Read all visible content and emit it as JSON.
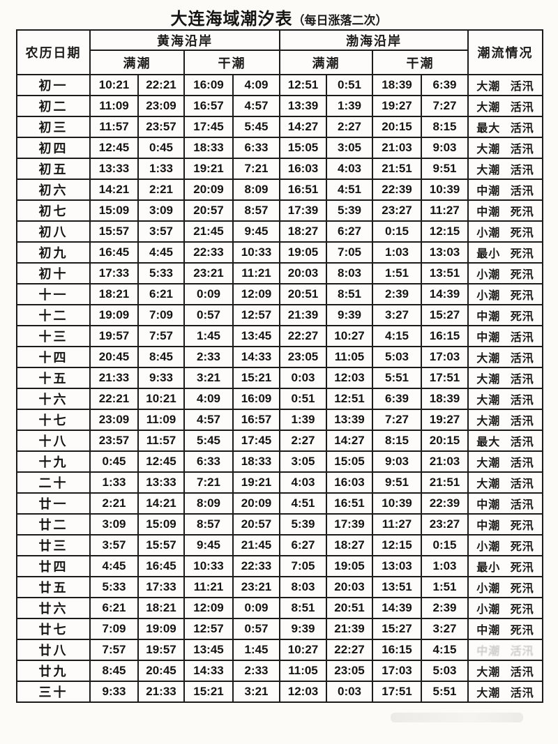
{
  "title": {
    "main": "大连海域潮汐表",
    "note": "（每日涨落二次）"
  },
  "table": {
    "headers": {
      "lunar_date": "农历日期",
      "yellow_sea": "黄海沿岸",
      "bohai_sea": "渤海沿岸",
      "high_tide": "满潮",
      "low_tide": "干潮",
      "tide_current": "潮流情况"
    },
    "rows": [
      {
        "date": "初一",
        "yellow_high": [
          "10:21",
          "22:21"
        ],
        "yellow_low": [
          "16:09",
          "4:09"
        ],
        "bohai_high": [
          "12:51",
          "0:51"
        ],
        "bohai_low": [
          "18:39",
          "6:39"
        ],
        "current": "大潮 活汛"
      },
      {
        "date": "初二",
        "yellow_high": [
          "11:09",
          "23:09"
        ],
        "yellow_low": [
          "16:57",
          "4:57"
        ],
        "bohai_high": [
          "13:39",
          "1:39"
        ],
        "bohai_low": [
          "19:27",
          "7:27"
        ],
        "current": "大潮 活汛"
      },
      {
        "date": "初三",
        "yellow_high": [
          "11:57",
          "23:57"
        ],
        "yellow_low": [
          "17:45",
          "5:45"
        ],
        "bohai_high": [
          "14:27",
          "2:27"
        ],
        "bohai_low": [
          "20:15",
          "8:15"
        ],
        "current": "最大 活汛"
      },
      {
        "date": "初四",
        "yellow_high": [
          "12:45",
          "0:45"
        ],
        "yellow_low": [
          "18:33",
          "6:33"
        ],
        "bohai_high": [
          "15:05",
          "3:05"
        ],
        "bohai_low": [
          "21:03",
          "9:03"
        ],
        "current": "大潮 活汛"
      },
      {
        "date": "初五",
        "yellow_high": [
          "13:33",
          "1:33"
        ],
        "yellow_low": [
          "19:21",
          "7:21"
        ],
        "bohai_high": [
          "16:03",
          "4:03"
        ],
        "bohai_low": [
          "21:51",
          "9:51"
        ],
        "current": "大潮 活汛"
      },
      {
        "date": "初六",
        "yellow_high": [
          "14:21",
          "2:21"
        ],
        "yellow_low": [
          "20:09",
          "8:09"
        ],
        "bohai_high": [
          "16:51",
          "4:51"
        ],
        "bohai_low": [
          "22:39",
          "10:39"
        ],
        "current": "中潮 活汛"
      },
      {
        "date": "初七",
        "yellow_high": [
          "15:09",
          "3:09"
        ],
        "yellow_low": [
          "20:57",
          "8:57"
        ],
        "bohai_high": [
          "17:39",
          "5:39"
        ],
        "bohai_low": [
          "23:27",
          "11:27"
        ],
        "current": "中潮 死汛"
      },
      {
        "date": "初八",
        "yellow_high": [
          "15:57",
          "3:57"
        ],
        "yellow_low": [
          "21:45",
          "9:45"
        ],
        "bohai_high": [
          "18:27",
          "6:27"
        ],
        "bohai_low": [
          "0:15",
          "12:15"
        ],
        "current": "小潮 死汛"
      },
      {
        "date": "初九",
        "yellow_high": [
          "16:45",
          "4:45"
        ],
        "yellow_low": [
          "22:33",
          "10:33"
        ],
        "bohai_high": [
          "19:05",
          "7:05"
        ],
        "bohai_low": [
          "1:03",
          "13:03"
        ],
        "current": "最小 死汛"
      },
      {
        "date": "初十",
        "yellow_high": [
          "17:33",
          "5:33"
        ],
        "yellow_low": [
          "23:21",
          "11:21"
        ],
        "bohai_high": [
          "20:03",
          "8:03"
        ],
        "bohai_low": [
          "1:51",
          "13:51"
        ],
        "current": "小潮 死汛"
      },
      {
        "date": "十一",
        "yellow_high": [
          "18:21",
          "6:21"
        ],
        "yellow_low": [
          "0:09",
          "12:09"
        ],
        "bohai_high": [
          "20:51",
          "8:51"
        ],
        "bohai_low": [
          "2:39",
          "14:39"
        ],
        "current": "小潮 死汛"
      },
      {
        "date": "十二",
        "yellow_high": [
          "19:09",
          "7:09"
        ],
        "yellow_low": [
          "0:57",
          "12:57"
        ],
        "bohai_high": [
          "21:39",
          "9:39"
        ],
        "bohai_low": [
          "3:27",
          "15:27"
        ],
        "current": "中潮 死汛"
      },
      {
        "date": "十三",
        "yellow_high": [
          "19:57",
          "7:57"
        ],
        "yellow_low": [
          "1:45",
          "13:45"
        ],
        "bohai_high": [
          "22:27",
          "10:27"
        ],
        "bohai_low": [
          "4:15",
          "16:15"
        ],
        "current": "中潮 活汛"
      },
      {
        "date": "十四",
        "yellow_high": [
          "20:45",
          "8:45"
        ],
        "yellow_low": [
          "2:33",
          "14:33"
        ],
        "bohai_high": [
          "23:05",
          "11:05"
        ],
        "bohai_low": [
          "5:03",
          "17:03"
        ],
        "current": "大潮 活汛"
      },
      {
        "date": "十五",
        "yellow_high": [
          "21:33",
          "9:33"
        ],
        "yellow_low": [
          "3:21",
          "15:21"
        ],
        "bohai_high": [
          "0:03",
          "12:03"
        ],
        "bohai_low": [
          "5:51",
          "17:51"
        ],
        "current": "大潮 活汛"
      },
      {
        "date": "十六",
        "yellow_high": [
          "22:21",
          "10:21"
        ],
        "yellow_low": [
          "4:09",
          "16:09"
        ],
        "bohai_high": [
          "0:51",
          "12:51"
        ],
        "bohai_low": [
          "6:39",
          "18:39"
        ],
        "current": "大潮 活汛"
      },
      {
        "date": "十七",
        "yellow_high": [
          "23:09",
          "11:09"
        ],
        "yellow_low": [
          "4:57",
          "16:57"
        ],
        "bohai_high": [
          "1:39",
          "13:39"
        ],
        "bohai_low": [
          "7:27",
          "19:27"
        ],
        "current": "大潮 活汛"
      },
      {
        "date": "十八",
        "yellow_high": [
          "23:57",
          "11:57"
        ],
        "yellow_low": [
          "5:45",
          "17:45"
        ],
        "bohai_high": [
          "2:27",
          "14:27"
        ],
        "bohai_low": [
          "8:15",
          "20:15"
        ],
        "current": "最大 活汛"
      },
      {
        "date": "十九",
        "yellow_high": [
          "0:45",
          "12:45"
        ],
        "yellow_low": [
          "6:33",
          "18:33"
        ],
        "bohai_high": [
          "3:05",
          "15:05"
        ],
        "bohai_low": [
          "9:03",
          "21:03"
        ],
        "current": "大潮 活汛"
      },
      {
        "date": "二十",
        "yellow_high": [
          "1:33",
          "13:33"
        ],
        "yellow_low": [
          "7:21",
          "19:21"
        ],
        "bohai_high": [
          "4:03",
          "16:03"
        ],
        "bohai_low": [
          "9:51",
          "21:51"
        ],
        "current": "大潮 活汛"
      },
      {
        "date": "廿一",
        "yellow_high": [
          "2:21",
          "14:21"
        ],
        "yellow_low": [
          "8:09",
          "20:09"
        ],
        "bohai_high": [
          "4:51",
          "16:51"
        ],
        "bohai_low": [
          "10:39",
          "22:39"
        ],
        "current": "中潮 活汛"
      },
      {
        "date": "廿二",
        "yellow_high": [
          "3:09",
          "15:09"
        ],
        "yellow_low": [
          "8:57",
          "20:57"
        ],
        "bohai_high": [
          "5:39",
          "17:39"
        ],
        "bohai_low": [
          "11:27",
          "23:27"
        ],
        "current": "中潮 死汛"
      },
      {
        "date": "廿三",
        "yellow_high": [
          "3:57",
          "15:57"
        ],
        "yellow_low": [
          "9:45",
          "21:45"
        ],
        "bohai_high": [
          "6:27",
          "18:27"
        ],
        "bohai_low": [
          "12:15",
          "0:15"
        ],
        "current": "小潮 死汛"
      },
      {
        "date": "廿四",
        "yellow_high": [
          "4:45",
          "16:45"
        ],
        "yellow_low": [
          "10:33",
          "22:33"
        ],
        "bohai_high": [
          "7:05",
          "19:05"
        ],
        "bohai_low": [
          "13:03",
          "1:03"
        ],
        "current": "最小 死汛"
      },
      {
        "date": "廿五",
        "yellow_high": [
          "5:33",
          "17:33"
        ],
        "yellow_low": [
          "11:21",
          "23:21"
        ],
        "bohai_high": [
          "8:03",
          "20:03"
        ],
        "bohai_low": [
          "13:51",
          "1:51"
        ],
        "current": "小潮 死汛"
      },
      {
        "date": "廿六",
        "yellow_high": [
          "6:21",
          "18:21"
        ],
        "yellow_low": [
          "12:09",
          "0:09"
        ],
        "bohai_high": [
          "8:51",
          "20:51"
        ],
        "bohai_low": [
          "14:39",
          "2:39"
        ],
        "current": "小潮 死汛"
      },
      {
        "date": "廿七",
        "yellow_high": [
          "7:09",
          "19:09"
        ],
        "yellow_low": [
          "12:57",
          "0:57"
        ],
        "bohai_high": [
          "9:39",
          "21:39"
        ],
        "bohai_low": [
          "15:27",
          "3:27"
        ],
        "current": "中潮 死汛"
      },
      {
        "date": "廿八",
        "yellow_high": [
          "7:57",
          "19:57"
        ],
        "yellow_low": [
          "13:45",
          "1:45"
        ],
        "bohai_high": [
          "10:27",
          "22:27"
        ],
        "bohai_low": [
          "16:15",
          "4:15"
        ],
        "current": "中潮 活汛",
        "current_faded": true
      },
      {
        "date": "廿九",
        "yellow_high": [
          "8:45",
          "20:45"
        ],
        "yellow_low": [
          "14:33",
          "2:33"
        ],
        "bohai_high": [
          "11:05",
          "23:05"
        ],
        "bohai_low": [
          "17:03",
          "5:03"
        ],
        "current": "大潮 活汛"
      },
      {
        "date": "三十",
        "yellow_high": [
          "9:33",
          "21:33"
        ],
        "yellow_low": [
          "15:21",
          "3:21"
        ],
        "bohai_high": [
          "12:03",
          "0:03"
        ],
        "bohai_low": [
          "17:51",
          "5:51"
        ],
        "current": "大潮 活汛",
        "eroded_top": true
      }
    ]
  }
}
